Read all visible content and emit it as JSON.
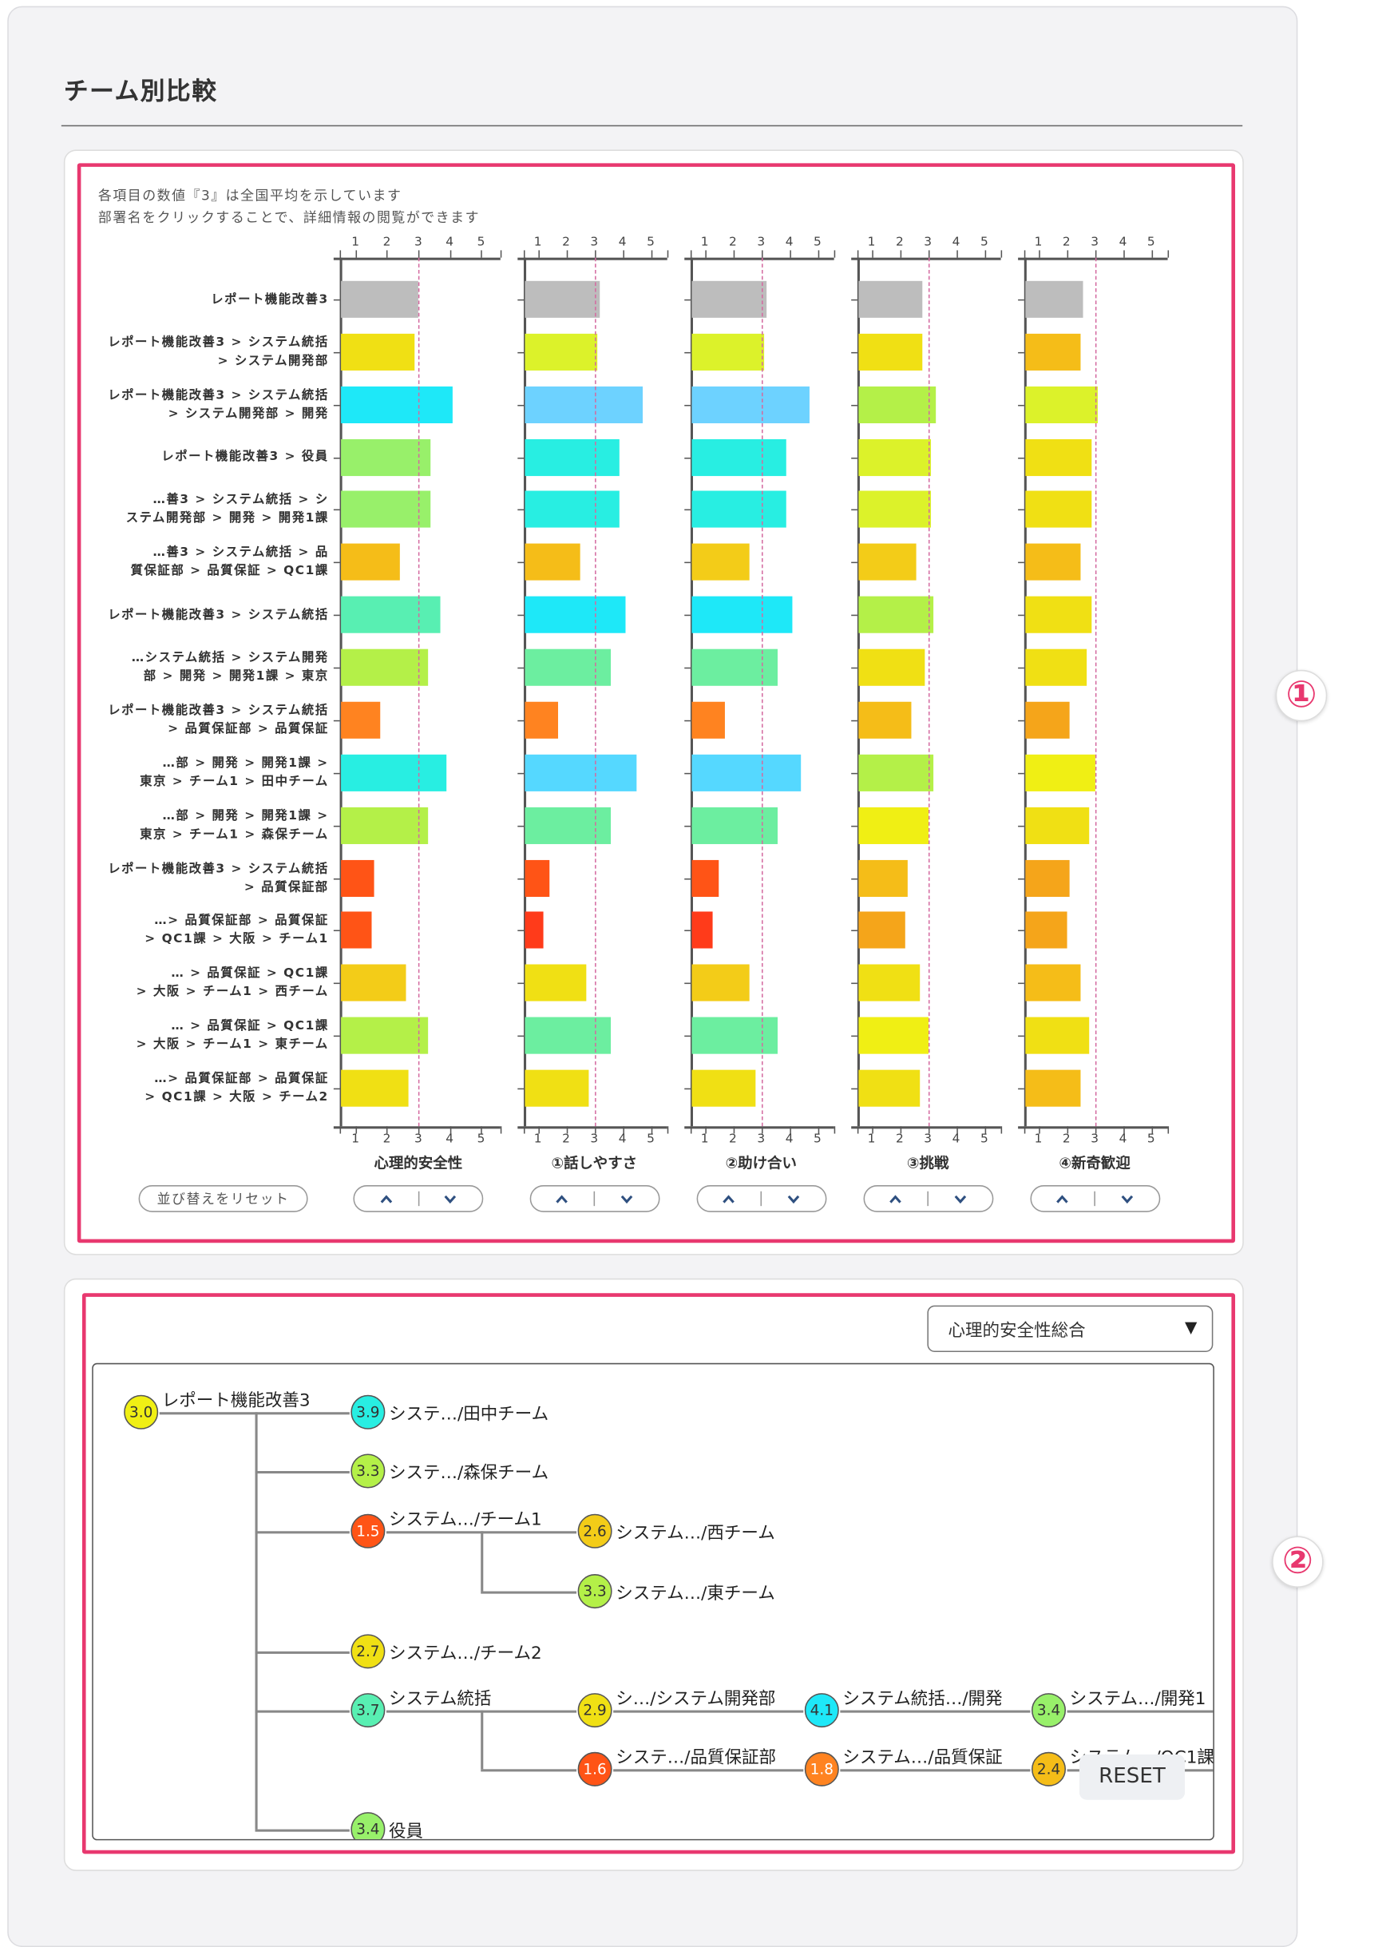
{
  "page": {
    "title": "チーム別比較"
  },
  "annotations": {
    "circle1": "①",
    "circle2": "②"
  },
  "comparison": {
    "note_lines": [
      "各項目の数値『3』は全国平均を示しています",
      "部署名をクリックすることで、詳細情報の閲覧ができます"
    ],
    "reset_sort_label": "並び替えをリセット"
  },
  "color_scale": [
    [
      1.2,
      "#ff3b1a"
    ],
    [
      1.5,
      "#ff5416"
    ],
    [
      1.8,
      "#ff8320"
    ],
    [
      2.1,
      "#f5a51a"
    ],
    [
      2.4,
      "#f5bd18"
    ],
    [
      2.6,
      "#f3cc18"
    ],
    [
      2.8,
      "#f0e014"
    ],
    [
      3.0,
      "#f0ef14"
    ],
    [
      3.1,
      "#dcf22a"
    ],
    [
      3.3,
      "#b4f048"
    ],
    [
      3.4,
      "#98f06a"
    ],
    [
      3.6,
      "#6ceea0"
    ],
    [
      3.7,
      "#58efb2"
    ],
    [
      3.9,
      "#28eee2"
    ],
    [
      4.1,
      "#1ee8f8"
    ],
    [
      4.4,
      "#55d8ff"
    ],
    [
      4.7,
      "#6dd2ff"
    ]
  ],
  "chart_data": {
    "type": "bar",
    "orientation": "horizontal",
    "xlim": [
      0.5,
      5.5
    ],
    "xticks": [
      "1",
      "2",
      "3",
      "4",
      "5"
    ],
    "reference_line": 3,
    "root_color": "#bdbdbd",
    "categories": [
      "レポート機能改善3",
      "レポート機能改善3 > システム統括\n> システム開発部",
      "レポート機能改善3 > システム統括\n> システム開発部 > 開発",
      "レポート機能改善3 > 役員",
      "…善3 > システム統括 > シ\nステム開発部 > 開発 > 開発1課",
      "…善3 > システム統括 > 品\n質保証部 > 品質保証 > QC1課",
      "レポート機能改善3 > システム統括",
      "…システム統括 > システム開発\n部 > 開発 > 開発1課 > 東京",
      "レポート機能改善3 > システム統括\n> 品質保証部 > 品質保証",
      "…部 > 開発 > 開発1課 >\n東京 > チーム1 > 田中チーム",
      "…部 > 開発 > 開発1課 >\n東京 > チーム1 > 森保チーム",
      "レポート機能改善3 > システム統括\n> 品質保証部",
      "…> 品質保証部 > 品質保証\n> QC1課 > 大阪 > チーム1",
      "… > 品質保証 > QC1課\n> 大阪 > チーム1 > 西チーム",
      "… > 品質保証 > QC1課\n> 大阪 > チーム1 > 東チーム",
      "…> 品質保証部 > 品質保証\n> QC1課 > 大阪 > チーム2"
    ],
    "series": [
      {
        "name": "心理的安全性",
        "values": [
          3.0,
          2.9,
          4.1,
          3.4,
          3.4,
          2.4,
          3.7,
          3.3,
          1.8,
          3.9,
          3.3,
          1.6,
          1.5,
          2.6,
          3.3,
          2.7
        ]
      },
      {
        "name": "①話しやすさ",
        "values": [
          3.2,
          3.1,
          4.7,
          3.9,
          3.9,
          2.5,
          4.1,
          3.6,
          1.7,
          4.5,
          3.6,
          1.4,
          1.2,
          2.7,
          3.6,
          2.8
        ]
      },
      {
        "name": "②助け合い",
        "values": [
          3.2,
          3.1,
          4.7,
          3.9,
          3.9,
          2.6,
          4.1,
          3.6,
          1.7,
          4.4,
          3.6,
          1.5,
          1.3,
          2.6,
          3.6,
          2.8
        ]
      },
      {
        "name": "③挑戦",
        "values": [
          2.8,
          2.8,
          3.3,
          3.1,
          3.1,
          2.6,
          3.2,
          2.9,
          2.4,
          3.2,
          3.0,
          2.3,
          2.2,
          2.7,
          3.0,
          2.7
        ]
      },
      {
        "name": "④新奇歓迎",
        "values": [
          2.6,
          2.5,
          3.1,
          2.9,
          2.9,
          2.5,
          2.9,
          2.7,
          2.1,
          3.0,
          2.8,
          2.1,
          2.0,
          2.5,
          2.8,
          2.5
        ]
      }
    ]
  },
  "tree": {
    "selected_metric": "心理的安全性総合",
    "reset_label": "RESET",
    "nodes": [
      {
        "label": "レポート機能改善3",
        "value": "3.0"
      },
      {
        "label": "システ…/田中チーム",
        "value": "3.9"
      },
      {
        "label": "システ…/森保チーム",
        "value": "3.3"
      },
      {
        "label": "システム…/チーム1",
        "value": "1.5"
      },
      {
        "label": "システム…/西チーム",
        "value": "2.6"
      },
      {
        "label": "システム…/東チーム",
        "value": "3.3"
      },
      {
        "label": "システム…/チーム2",
        "value": "2.7"
      },
      {
        "label": "システム統括",
        "value": "3.7"
      },
      {
        "label": "シ…/システム開発部",
        "value": "2.9"
      },
      {
        "label": "システム統括…/開発",
        "value": "4.1"
      },
      {
        "label": "システム…/開発1",
        "value": "3.4"
      },
      {
        "label": "システ…/品質保証部",
        "value": "1.6"
      },
      {
        "label": "システム…/品質保証",
        "value": "1.8"
      },
      {
        "label": "システム…/QC1課",
        "value": "2.4"
      },
      {
        "label": "役員",
        "value": "3.4"
      }
    ]
  }
}
